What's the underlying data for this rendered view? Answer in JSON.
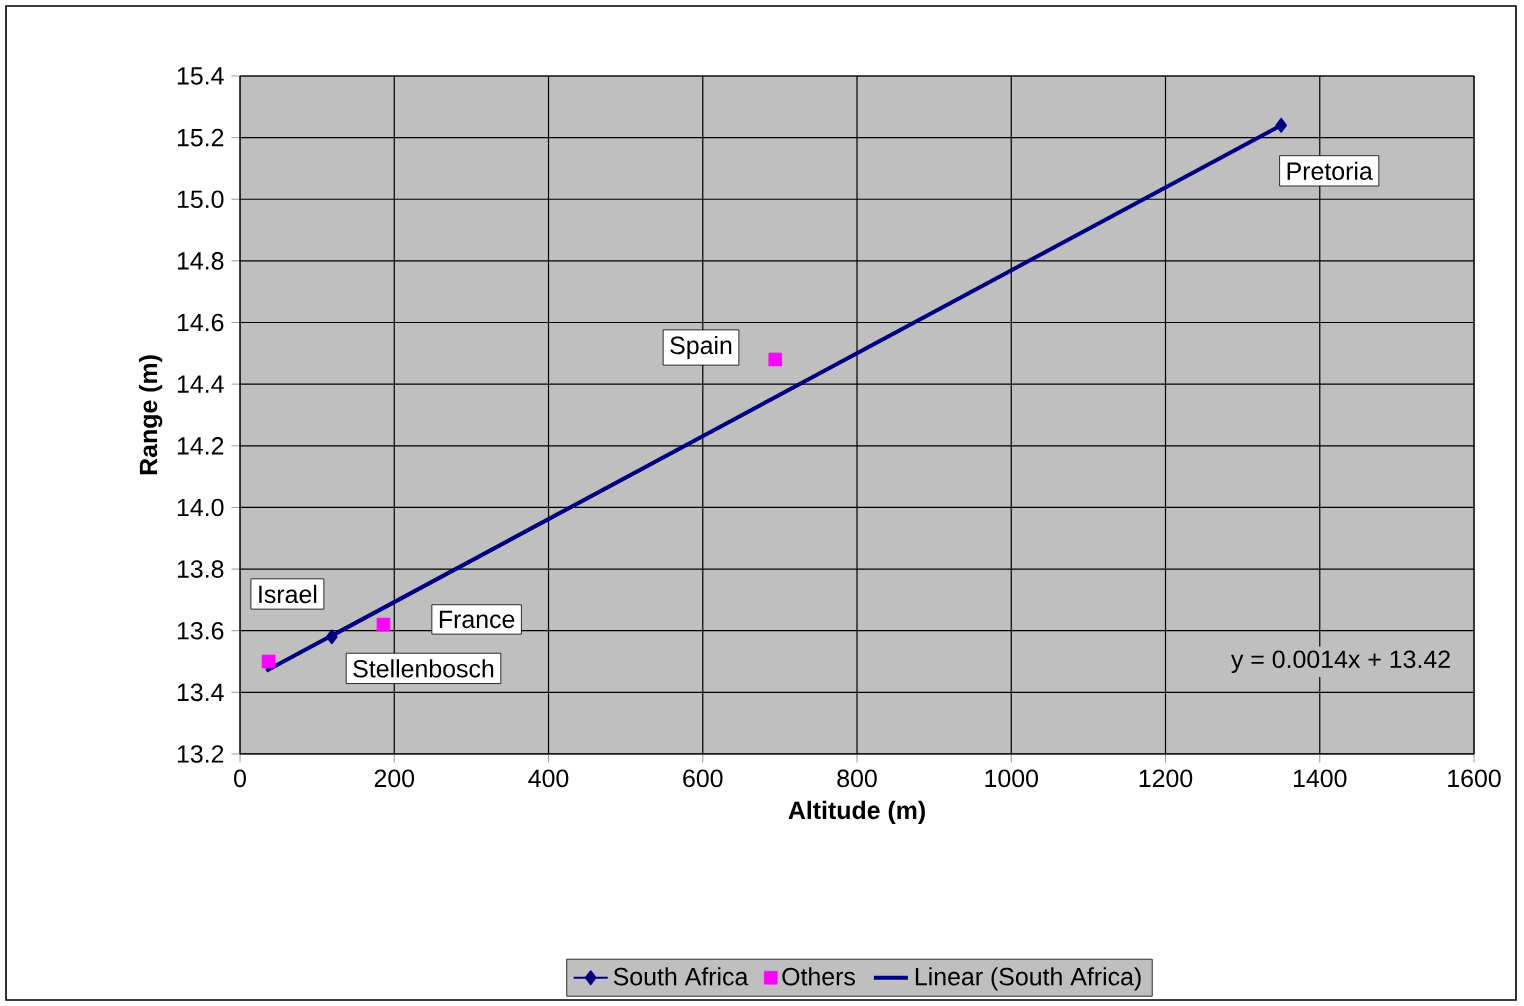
{
  "chart_data": {
    "type": "scatter",
    "xlabel": "Altitude (m)",
    "ylabel": "Range (m)",
    "xlim": [
      0,
      1600
    ],
    "xticks": [
      0,
      200,
      400,
      600,
      800,
      1000,
      1200,
      1400,
      1600
    ],
    "ylim": [
      13.2,
      15.4
    ],
    "yticks": [
      13.2,
      13.4,
      13.6,
      13.8,
      {
        "value": 14,
        "label": "14.0"
      },
      14.2,
      14.4,
      14.6,
      14.8,
      {
        "value": 15,
        "label": "15.0"
      },
      15.2,
      15.4
    ],
    "grid": true,
    "legend": "bottom",
    "series": [
      {
        "name": "South Africa",
        "type": "line",
        "marker": "diamond",
        "color": "#000080",
        "x": [
          119,
          1350
        ],
        "values": [
          13.58,
          15.24
        ]
      },
      {
        "name": "Others",
        "type": "scatter",
        "marker": "square",
        "color": "#ff00ff",
        "x": [
          37,
          186,
          694
        ],
        "values": [
          13.5,
          13.62,
          14.48
        ]
      },
      {
        "name": "Linear (South Africa)",
        "type": "line",
        "marker": "none",
        "color": "#000080",
        "x": [
          34,
          1350
        ],
        "values": [
          13.47,
          15.24
        ]
      }
    ],
    "annotations": [
      {
        "text": "Israel",
        "x": 37,
        "y": 13.5
      },
      {
        "text": "France",
        "x": 186,
        "y": 13.62
      },
      {
        "text": "Spain",
        "x": 694,
        "y": 14.48
      },
      {
        "text": "Stellenbosch",
        "x": 119,
        "y": 13.58
      },
      {
        "text": "Pretoria",
        "x": 1350,
        "y": 15.24
      },
      "y = 0.0014x + 13.42"
    ]
  }
}
